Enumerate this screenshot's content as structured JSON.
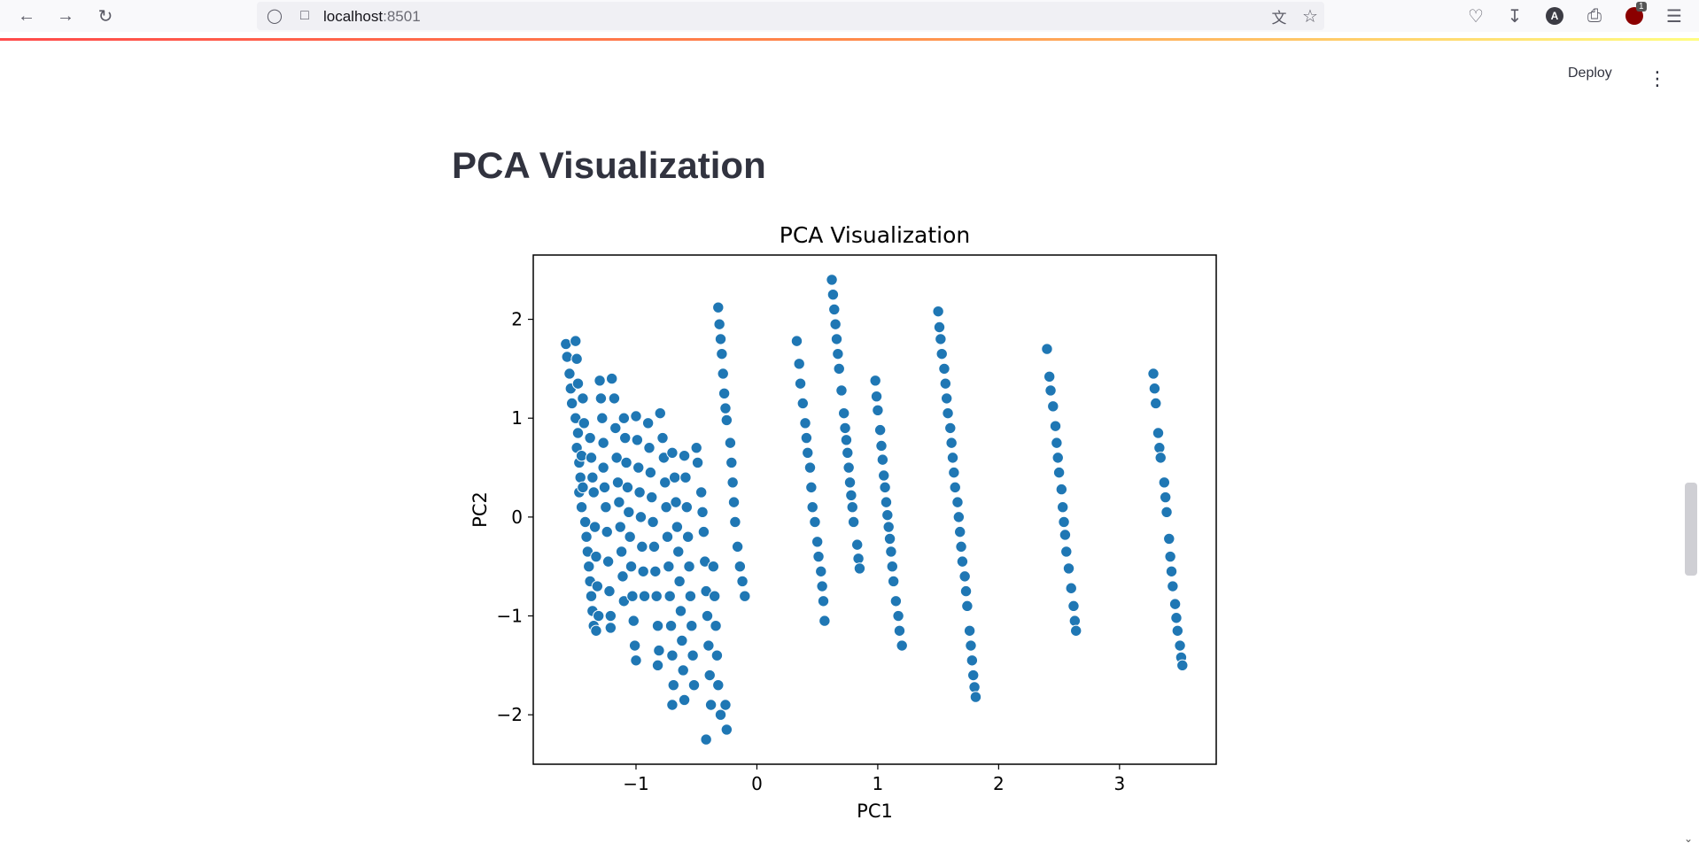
{
  "browser": {
    "url_host": "localhost",
    "url_port": ":8501",
    "extension_badge": "1",
    "avatar_letter": "A"
  },
  "app": {
    "deploy_label": "Deploy",
    "page_title": "PCA Visualization"
  },
  "colors": {
    "point": "#1f77b4",
    "title": "#31333f"
  },
  "chart_data": {
    "type": "scatter",
    "title": "PCA Visualization",
    "xlabel": "PC1",
    "ylabel": "PC2",
    "xlim": [
      -1.85,
      3.8
    ],
    "ylim": [
      -2.5,
      2.65
    ],
    "xticks": [
      -1,
      0,
      1,
      2,
      3
    ],
    "yticks": [
      -2,
      -1,
      0,
      1,
      2
    ],
    "grid": false,
    "series": [
      {
        "values_note": "",
        "points": [
          [
            -1.58,
            1.75
          ],
          [
            -1.57,
            1.62
          ],
          [
            -1.55,
            1.45
          ],
          [
            -1.54,
            1.3
          ],
          [
            -1.53,
            1.15
          ],
          [
            -1.5,
            1.78
          ],
          [
            -1.49,
            1.6
          ],
          [
            -1.48,
            1.35
          ],
          [
            -1.5,
            1.0
          ],
          [
            -1.48,
            0.85
          ],
          [
            -1.49,
            0.7
          ],
          [
            -1.47,
            0.55
          ],
          [
            -1.46,
            0.4
          ],
          [
            -1.47,
            0.25
          ],
          [
            -1.45,
            0.1
          ],
          [
            -1.44,
            1.2
          ],
          [
            -1.43,
            0.95
          ],
          [
            -1.45,
            0.62
          ],
          [
            -1.44,
            0.3
          ],
          [
            -1.42,
            -0.05
          ],
          [
            -1.41,
            -0.2
          ],
          [
            -1.4,
            -0.35
          ],
          [
            -1.39,
            -0.5
          ],
          [
            -1.38,
            -0.65
          ],
          [
            -1.37,
            -0.8
          ],
          [
            -1.36,
            -0.95
          ],
          [
            -1.35,
            -1.1
          ],
          [
            -1.38,
            0.8
          ],
          [
            -1.37,
            0.6
          ],
          [
            -1.36,
            0.4
          ],
          [
            -1.35,
            0.25
          ],
          [
            -1.34,
            -0.1
          ],
          [
            -1.33,
            -0.4
          ],
          [
            -1.32,
            -0.7
          ],
          [
            -1.31,
            -1.0
          ],
          [
            -1.33,
            -1.15
          ],
          [
            -1.3,
            1.38
          ],
          [
            -1.29,
            1.2
          ],
          [
            -1.28,
            1.0
          ],
          [
            -1.27,
            0.75
          ],
          [
            -1.27,
            0.5
          ],
          [
            -1.26,
            0.3
          ],
          [
            -1.25,
            0.1
          ],
          [
            -1.24,
            -0.15
          ],
          [
            -1.23,
            -0.45
          ],
          [
            -1.22,
            -0.75
          ],
          [
            -1.21,
            -1.0
          ],
          [
            -1.21,
            -1.12
          ],
          [
            -1.2,
            1.4
          ],
          [
            -1.18,
            1.2
          ],
          [
            -1.17,
            0.9
          ],
          [
            -1.16,
            0.6
          ],
          [
            -1.15,
            0.35
          ],
          [
            -1.14,
            0.15
          ],
          [
            -1.13,
            -0.1
          ],
          [
            -1.12,
            -0.35
          ],
          [
            -1.11,
            -0.6
          ],
          [
            -1.1,
            -0.85
          ],
          [
            -1.1,
            1.0
          ],
          [
            -1.09,
            0.8
          ],
          [
            -1.08,
            0.55
          ],
          [
            -1.07,
            0.3
          ],
          [
            -1.06,
            0.05
          ],
          [
            -1.05,
            -0.2
          ],
          [
            -1.04,
            -0.5
          ],
          [
            -1.03,
            -0.8
          ],
          [
            -1.02,
            -1.05
          ],
          [
            -1.01,
            -1.3
          ],
          [
            -1.0,
            -1.45
          ],
          [
            -1.0,
            1.02
          ],
          [
            -0.99,
            0.78
          ],
          [
            -0.98,
            0.5
          ],
          [
            -0.97,
            0.25
          ],
          [
            -0.96,
            0.0
          ],
          [
            -0.95,
            -0.3
          ],
          [
            -0.94,
            -0.55
          ],
          [
            -0.93,
            -0.8
          ],
          [
            -0.9,
            0.95
          ],
          [
            -0.89,
            0.7
          ],
          [
            -0.88,
            0.45
          ],
          [
            -0.87,
            0.2
          ],
          [
            -0.86,
            -0.05
          ],
          [
            -0.85,
            -0.3
          ],
          [
            -0.84,
            -0.55
          ],
          [
            -0.83,
            -0.8
          ],
          [
            -0.82,
            -1.1
          ],
          [
            -0.81,
            -1.35
          ],
          [
            -0.82,
            -1.5
          ],
          [
            -0.8,
            1.05
          ],
          [
            -0.78,
            0.8
          ],
          [
            -0.77,
            0.6
          ],
          [
            -0.76,
            0.35
          ],
          [
            -0.75,
            0.1
          ],
          [
            -0.74,
            -0.2
          ],
          [
            -0.73,
            -0.5
          ],
          [
            -0.72,
            -0.8
          ],
          [
            -0.71,
            -1.1
          ],
          [
            -0.7,
            -1.4
          ],
          [
            -0.69,
            -1.7
          ],
          [
            -0.7,
            -1.9
          ],
          [
            -0.7,
            0.65
          ],
          [
            -0.68,
            0.4
          ],
          [
            -0.67,
            0.15
          ],
          [
            -0.66,
            -0.1
          ],
          [
            -0.65,
            -0.35
          ],
          [
            -0.64,
            -0.65
          ],
          [
            -0.63,
            -0.95
          ],
          [
            -0.62,
            -1.25
          ],
          [
            -0.61,
            -1.55
          ],
          [
            -0.6,
            -1.85
          ],
          [
            -0.6,
            0.62
          ],
          [
            -0.59,
            0.4
          ],
          [
            -0.58,
            0.1
          ],
          [
            -0.57,
            -0.2
          ],
          [
            -0.56,
            -0.5
          ],
          [
            -0.55,
            -0.8
          ],
          [
            -0.54,
            -1.1
          ],
          [
            -0.53,
            -1.4
          ],
          [
            -0.52,
            -1.7
          ],
          [
            -0.5,
            0.7
          ],
          [
            -0.49,
            0.55
          ],
          [
            -0.46,
            0.25
          ],
          [
            -0.45,
            0.05
          ],
          [
            -0.44,
            -0.15
          ],
          [
            -0.43,
            -0.45
          ],
          [
            -0.42,
            -0.75
          ],
          [
            -0.41,
            -1.0
          ],
          [
            -0.4,
            -1.3
          ],
          [
            -0.39,
            -1.6
          ],
          [
            -0.38,
            -1.9
          ],
          [
            -0.42,
            -2.25
          ],
          [
            -0.36,
            -0.5
          ],
          [
            -0.35,
            -0.8
          ],
          [
            -0.34,
            -1.1
          ],
          [
            -0.33,
            -1.4
          ],
          [
            -0.32,
            -1.7
          ],
          [
            -0.3,
            -2.0
          ],
          [
            -0.32,
            2.12
          ],
          [
            -0.31,
            1.95
          ],
          [
            -0.3,
            1.8
          ],
          [
            -0.29,
            1.65
          ],
          [
            -0.28,
            1.45
          ],
          [
            -0.27,
            1.25
          ],
          [
            -0.26,
            1.1
          ],
          [
            -0.25,
            0.98
          ],
          [
            -0.22,
            0.75
          ],
          [
            -0.21,
            0.55
          ],
          [
            -0.2,
            0.35
          ],
          [
            -0.19,
            0.15
          ],
          [
            -0.18,
            -0.05
          ],
          [
            -0.16,
            -0.3
          ],
          [
            -0.14,
            -0.5
          ],
          [
            -0.12,
            -0.65
          ],
          [
            -0.1,
            -0.8
          ],
          [
            -0.26,
            -1.9
          ],
          [
            -0.25,
            -2.15
          ],
          [
            0.33,
            1.78
          ],
          [
            0.35,
            1.55
          ],
          [
            0.36,
            1.35
          ],
          [
            0.38,
            1.15
          ],
          [
            0.4,
            0.95
          ],
          [
            0.41,
            0.8
          ],
          [
            0.42,
            0.65
          ],
          [
            0.44,
            0.5
          ],
          [
            0.45,
            0.3
          ],
          [
            0.46,
            0.1
          ],
          [
            0.48,
            -0.05
          ],
          [
            0.5,
            -0.25
          ],
          [
            0.51,
            -0.4
          ],
          [
            0.53,
            -0.55
          ],
          [
            0.54,
            -0.7
          ],
          [
            0.55,
            -0.85
          ],
          [
            0.56,
            -1.05
          ],
          [
            0.62,
            2.4
          ],
          [
            0.63,
            2.25
          ],
          [
            0.64,
            2.1
          ],
          [
            0.65,
            1.95
          ],
          [
            0.66,
            1.8
          ],
          [
            0.67,
            1.65
          ],
          [
            0.68,
            1.5
          ],
          [
            0.7,
            1.28
          ],
          [
            0.72,
            1.05
          ],
          [
            0.73,
            0.9
          ],
          [
            0.74,
            0.78
          ],
          [
            0.75,
            0.65
          ],
          [
            0.76,
            0.5
          ],
          [
            0.77,
            0.35
          ],
          [
            0.78,
            0.22
          ],
          [
            0.79,
            0.1
          ],
          [
            0.8,
            -0.05
          ],
          [
            0.83,
            -0.28
          ],
          [
            0.84,
            -0.42
          ],
          [
            0.85,
            -0.52
          ],
          [
            0.98,
            1.38
          ],
          [
            0.99,
            1.22
          ],
          [
            1.0,
            1.08
          ],
          [
            1.02,
            0.88
          ],
          [
            1.03,
            0.72
          ],
          [
            1.04,
            0.58
          ],
          [
            1.05,
            0.42
          ],
          [
            1.06,
            0.3
          ],
          [
            1.07,
            0.15
          ],
          [
            1.08,
            0.02
          ],
          [
            1.09,
            -0.1
          ],
          [
            1.1,
            -0.22
          ],
          [
            1.11,
            -0.35
          ],
          [
            1.12,
            -0.5
          ],
          [
            1.13,
            -0.65
          ],
          [
            1.15,
            -0.85
          ],
          [
            1.17,
            -1.0
          ],
          [
            1.18,
            -1.15
          ],
          [
            1.2,
            -1.3
          ],
          [
            1.5,
            2.08
          ],
          [
            1.51,
            1.92
          ],
          [
            1.52,
            1.8
          ],
          [
            1.53,
            1.65
          ],
          [
            1.55,
            1.5
          ],
          [
            1.56,
            1.35
          ],
          [
            1.57,
            1.2
          ],
          [
            1.58,
            1.05
          ],
          [
            1.6,
            0.9
          ],
          [
            1.61,
            0.75
          ],
          [
            1.62,
            0.6
          ],
          [
            1.63,
            0.45
          ],
          [
            1.64,
            0.3
          ],
          [
            1.66,
            0.15
          ],
          [
            1.67,
            0.0
          ],
          [
            1.68,
            -0.15
          ],
          [
            1.69,
            -0.3
          ],
          [
            1.7,
            -0.45
          ],
          [
            1.72,
            -0.6
          ],
          [
            1.73,
            -0.75
          ],
          [
            1.74,
            -0.9
          ],
          [
            1.76,
            -1.15
          ],
          [
            1.77,
            -1.3
          ],
          [
            1.78,
            -1.45
          ],
          [
            1.79,
            -1.6
          ],
          [
            1.8,
            -1.72
          ],
          [
            1.81,
            -1.82
          ],
          [
            2.4,
            1.7
          ],
          [
            2.42,
            1.42
          ],
          [
            2.43,
            1.28
          ],
          [
            2.45,
            1.12
          ],
          [
            2.47,
            0.92
          ],
          [
            2.48,
            0.75
          ],
          [
            2.49,
            0.6
          ],
          [
            2.5,
            0.45
          ],
          [
            2.52,
            0.28
          ],
          [
            2.53,
            0.1
          ],
          [
            2.54,
            -0.05
          ],
          [
            2.55,
            -0.18
          ],
          [
            2.56,
            -0.35
          ],
          [
            2.58,
            -0.52
          ],
          [
            2.6,
            -0.72
          ],
          [
            2.62,
            -0.9
          ],
          [
            2.63,
            -1.05
          ],
          [
            2.64,
            -1.15
          ],
          [
            3.28,
            1.45
          ],
          [
            3.29,
            1.3
          ],
          [
            3.3,
            1.15
          ],
          [
            3.32,
            0.85
          ],
          [
            3.33,
            0.7
          ],
          [
            3.34,
            0.6
          ],
          [
            3.37,
            0.35
          ],
          [
            3.38,
            0.2
          ],
          [
            3.39,
            0.05
          ],
          [
            3.41,
            -0.22
          ],
          [
            3.42,
            -0.4
          ],
          [
            3.43,
            -0.55
          ],
          [
            3.44,
            -0.7
          ],
          [
            3.46,
            -0.88
          ],
          [
            3.47,
            -1.02
          ],
          [
            3.48,
            -1.15
          ],
          [
            3.5,
            -1.3
          ],
          [
            3.51,
            -1.42
          ],
          [
            3.52,
            -1.5
          ]
        ]
      }
    ]
  }
}
